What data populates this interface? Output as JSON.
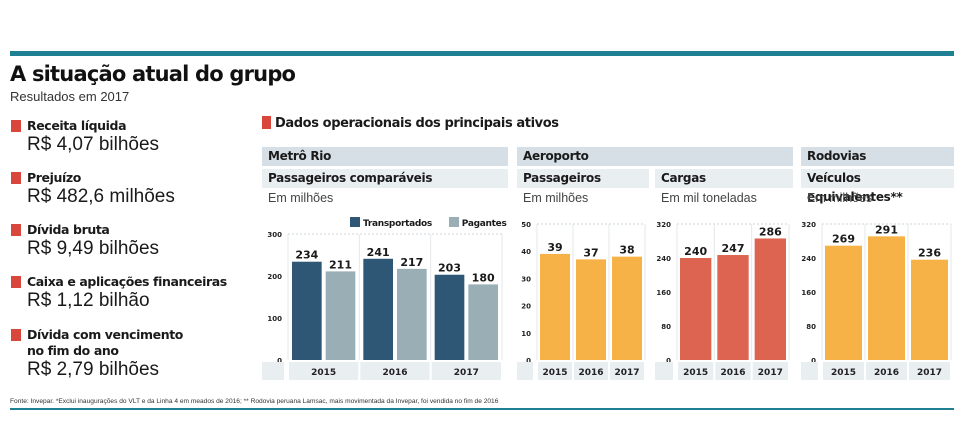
{
  "header": {
    "title": "A situação atual do grupo",
    "subtitle": "Resultados em 2017"
  },
  "kpis": [
    {
      "label": "Receita líquida",
      "value": "R$ 4,07 bilhões"
    },
    {
      "label": "Prejuízo",
      "value": "R$ 482,6 milhões"
    },
    {
      "label": "Dívida bruta",
      "value": "R$ 9,49 bilhões"
    },
    {
      "label": "Caixa e aplicações financeiras",
      "value": "R$ 1,12 bilhão"
    },
    {
      "label_lines": [
        "Dívida com vencimento",
        "no fim do ano"
      ],
      "value": "R$ 2,79 bilhões"
    }
  ],
  "section_title": "Dados operacionais dos principais ativos",
  "groups": {
    "metro": "Metrô Rio",
    "aeroporto": "Aeroporto",
    "rodovias": "Rodovias"
  },
  "colors": {
    "accent_red": "#d9463c",
    "teal_rule": "#1f7f93",
    "transportados": "#2e5775",
    "pagantes": "#9aaeb6",
    "orange": "#f7b247",
    "cargas": "#dc6450"
  },
  "chart_data": [
    {
      "id": "metro",
      "type": "bar",
      "title": "Passageiros comparáveis",
      "unit": "Em milhões",
      "categories": [
        "2015",
        "2016",
        "2017"
      ],
      "series": [
        {
          "name": "Transportados",
          "values": [
            234,
            241,
            203
          ],
          "color": "#2e5775"
        },
        {
          "name": "Pagantes",
          "values": [
            211,
            217,
            180
          ],
          "color": "#9aaeb6"
        }
      ],
      "yticks": [
        0,
        100,
        200,
        300
      ],
      "ylim": [
        0,
        300
      ],
      "legend": "top-right",
      "grid": true
    },
    {
      "id": "aero-pass",
      "type": "bar",
      "title": "Passageiros",
      "unit": "Em milhões",
      "categories": [
        "2015",
        "2016",
        "2017"
      ],
      "series": [
        {
          "name": "Passageiros",
          "values": [
            39,
            37,
            38
          ],
          "color": "#f7b247"
        }
      ],
      "yticks": [
        0,
        10,
        20,
        30,
        40,
        50
      ],
      "ylim": [
        0,
        50
      ],
      "grid": true
    },
    {
      "id": "aero-cargas",
      "type": "bar",
      "title": "Cargas",
      "unit": "Em mil toneladas",
      "categories": [
        "2015",
        "2016",
        "2017"
      ],
      "series": [
        {
          "name": "Cargas",
          "values": [
            240,
            247,
            286
          ],
          "color": "#dc6450"
        }
      ],
      "yticks": [
        0,
        80,
        160,
        240,
        320
      ],
      "ylim": [
        0,
        320
      ],
      "grid": true
    },
    {
      "id": "rodovias",
      "type": "bar",
      "title": "Veículos equivalentes**",
      "unit": "Em milhões",
      "categories": [
        "2015",
        "2016",
        "2017"
      ],
      "series": [
        {
          "name": "Veículos equivalentes",
          "values": [
            269,
            291,
            236
          ],
          "color": "#f7b247"
        }
      ],
      "yticks": [
        0,
        80,
        160,
        240,
        320
      ],
      "ylim": [
        0,
        320
      ],
      "grid": true
    }
  ],
  "footnote": "Fonte: Invepar. *Exclui inaugurações do VLT e da Linha 4 em meados de 2016; ** Rodovia peruana Lamsac, mais movimentada da Invepar, foi vendida no fim de 2016"
}
